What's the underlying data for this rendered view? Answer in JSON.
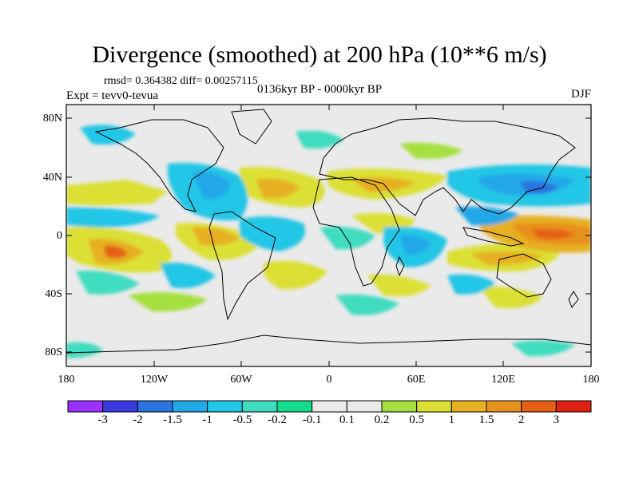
{
  "title": "Divergence (smoothed) at 200 hPa (10**6 m/s)",
  "stats": "rmsd= 0.364382 diff= 0.00257115",
  "experiment": "Expt = tevv0-tevua",
  "period": "0136kyr BP - 0000kyr BP",
  "season": "DJF",
  "lat_labels": [
    "80N",
    "40N",
    "0",
    "40S",
    "80S"
  ],
  "lon_labels": [
    "180",
    "120W",
    "60W",
    "0",
    "60E",
    "120E",
    "180"
  ],
  "colorbar": {
    "labels": [
      "-3",
      "-2",
      "-1.5",
      "-1",
      "-0.5",
      "-0.2",
      "-0.1",
      "0.1",
      "0.2",
      "0.5",
      "1",
      "1.5",
      "2",
      "3"
    ],
    "colors": [
      "#9b30ff",
      "#3a3ae0",
      "#2a74e0",
      "#20a8e8",
      "#22c6e6",
      "#40dcc0",
      "#14dc8c",
      "#eaeaea",
      "#a6e040",
      "#dce034",
      "#e6b024",
      "#e8901c",
      "#e66014",
      "#e02010"
    ]
  },
  "colors": {
    "ocean_background": "#eaeaea",
    "coastline": "#000000"
  }
}
